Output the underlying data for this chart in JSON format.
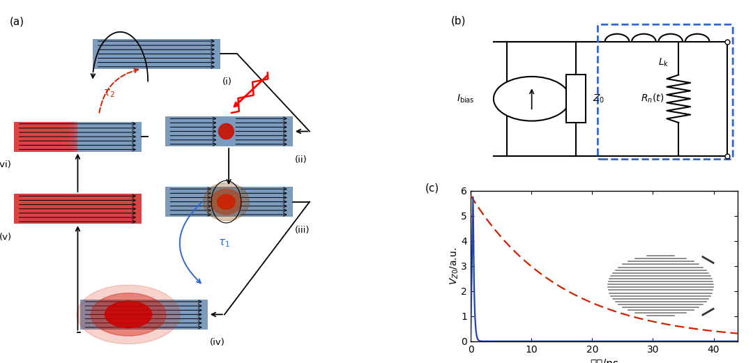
{
  "panel_a_label": "(a)",
  "panel_b_label": "(b)",
  "panel_c_label": "(c)",
  "panel_c_xlabel": "时间/ns",
  "panel_c_ylabel": "$V_{Z0}$/a.u.",
  "panel_c_xlim": [
    0,
    44
  ],
  "panel_c_ylim": [
    0,
    6
  ],
  "panel_c_xticks": [
    0,
    10,
    20,
    30,
    40
  ],
  "panel_c_yticks": [
    0,
    1,
    2,
    3,
    4,
    5,
    6
  ],
  "red_decay_tau": 15.0,
  "red_decay_amplitude": 5.8,
  "blue_peak": 5.8,
  "figure_bg": "#ffffff",
  "wire_color": "#7b9bbf",
  "wire_color_vi": "#c08080",
  "wire_color_v": "#c05050",
  "hotspot_red": "#cc1100",
  "circuit_dashed_color": "#3366cc",
  "tau1_color": "#3366cc",
  "tau2_color": "#cc2200"
}
